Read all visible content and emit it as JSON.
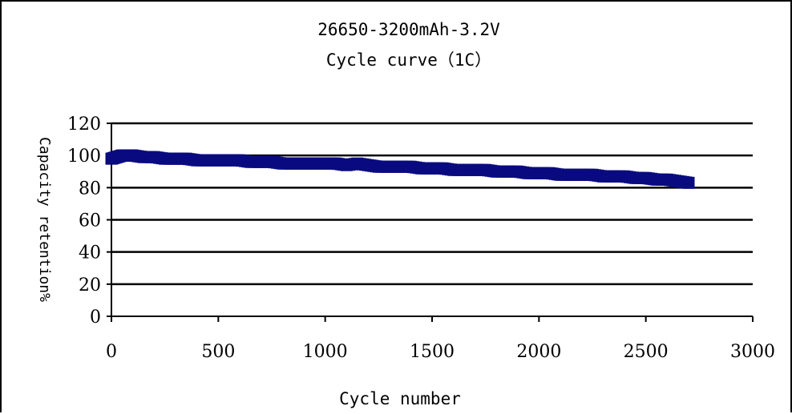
{
  "chart_data": {
    "type": "scatter",
    "title": "26650-3200mAh-3.2V",
    "subtitle": "Cycle curve（1C）",
    "xlabel": "Cycle number",
    "ylabel": "Capacity retention%",
    "xlim": [
      0,
      3000
    ],
    "ylim": [
      0,
      120
    ],
    "x_ticks": [
      "0",
      "500",
      "1000",
      "1500",
      "2000",
      "2500",
      "3000"
    ],
    "y_ticks": [
      "0",
      "20",
      "40",
      "60",
      "80",
      "100",
      "120"
    ],
    "grid": "horizontal",
    "legend": "none",
    "marker_color": "#0a0a80",
    "series": [
      {
        "x": [
          0,
          25,
          50,
          75,
          100,
          150,
          200,
          250,
          300,
          350,
          400,
          450,
          500,
          550,
          600,
          650,
          700,
          750,
          800,
          850,
          900,
          950,
          1000,
          1050,
          1100,
          1150,
          1200,
          1250,
          1300,
          1350,
          1400,
          1450,
          1500,
          1550,
          1600,
          1650,
          1700,
          1750,
          1800,
          1850,
          1900,
          1950,
          2000,
          2050,
          2100,
          2150,
          2200,
          2250,
          2300,
          2350,
          2400,
          2450,
          2500,
          2550,
          2600,
          2650,
          2700
        ],
        "y": [
          98,
          99,
          100,
          100,
          100,
          99,
          99,
          98,
          98,
          98,
          97,
          97,
          97,
          97,
          97,
          96,
          96,
          96,
          95,
          95,
          95,
          95,
          95,
          95,
          94,
          95,
          94,
          93,
          93,
          93,
          93,
          92,
          92,
          92,
          91,
          91,
          91,
          91,
          90,
          90,
          90,
          89,
          89,
          89,
          88,
          88,
          88,
          88,
          87,
          87,
          87,
          86,
          86,
          85,
          85,
          84,
          83
        ]
      }
    ]
  }
}
